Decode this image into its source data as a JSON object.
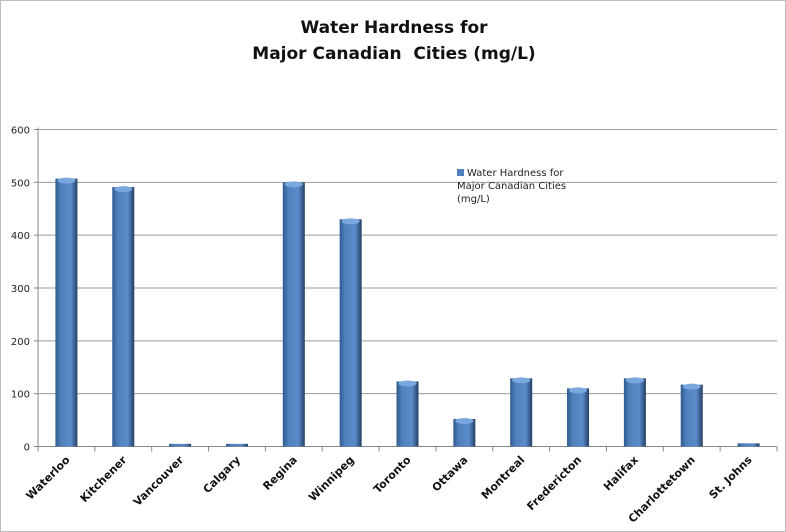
{
  "chart_data": {
    "type": "bar",
    "title": "Water Hardness for Major Canadian  Cities (mg/L)",
    "title_lines": [
      "Water Hardness for",
      "Major Canadian  Cities (mg/L)"
    ],
    "xlabel": "",
    "ylabel": "",
    "ylim": [
      0,
      600
    ],
    "yticks": [
      0,
      100,
      200,
      300,
      400,
      500,
      600
    ],
    "grid": true,
    "legend_position": "top-right",
    "categories": [
      "Waterloo",
      "Kitchener",
      "Vancouver",
      "Calgary",
      "Regina",
      "Winnipeg",
      "Toronto",
      "Ottawa",
      "Montreal",
      "Fredericton",
      "Halifax",
      "Charlottetown",
      "St. Johns"
    ],
    "series": [
      {
        "name": "Water Hardness for Major Canadian Cities (mg/L)",
        "color": "#4f81bd",
        "values": [
          507,
          491,
          5,
          5,
          500,
          430,
          123,
          52,
          129,
          110,
          129,
          117,
          6
        ]
      }
    ]
  }
}
